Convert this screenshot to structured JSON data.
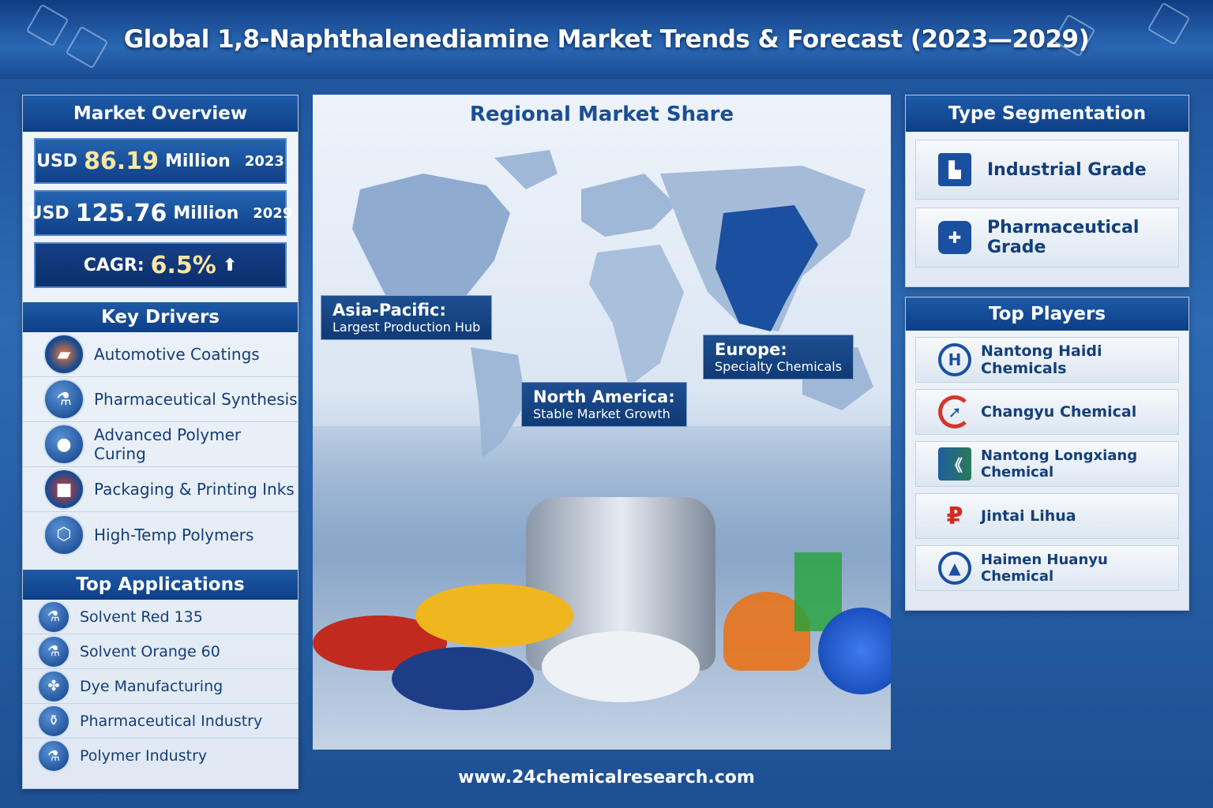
{
  "title": "Global 1,8-Naphthalenediamine Market Trends & Forecast (2023—2029)",
  "market_overview": {
    "title": "Market Overview",
    "stats": [
      {
        "prefix": "USD",
        "value": "86.19",
        "unit": "Million",
        "year": "2023"
      },
      {
        "prefix": "USD",
        "value": "125.76",
        "unit": "Million",
        "year": "2029"
      }
    ],
    "cagr_label": "CAGR:",
    "cagr_value": "6.5%",
    "cagr_arrow": "⬆"
  },
  "key_drivers": {
    "title": "Key Drivers",
    "items": [
      {
        "label": "Automotive Coatings",
        "icon": "paint-icon"
      },
      {
        "label": "Pharmaceutical Synthesis",
        "icon": "flask-icon"
      },
      {
        "label": "Advanced Polymer Curing",
        "icon": "pellets-icon"
      },
      {
        "label": "Packaging & Printing Inks",
        "icon": "box-icon"
      },
      {
        "label": "High-Temp Polymers",
        "icon": "polymer-icon"
      }
    ]
  },
  "top_applications": {
    "title": "Top Applications",
    "items": [
      {
        "label": "Solvent Red 135",
        "icon": "flask-icon"
      },
      {
        "label": "Solvent Orange 60",
        "icon": "flask-icon"
      },
      {
        "label": "Dye Manufacturing",
        "icon": "dye-icon"
      },
      {
        "label": "Pharmaceutical Industry",
        "icon": "bottle-icon"
      },
      {
        "label": "Polymer Industry",
        "icon": "flask-icon"
      }
    ]
  },
  "regional": {
    "title": "Regional Market Share",
    "labels": [
      {
        "region": "Asia-Pacific:",
        "note": "Largest Production Hub"
      },
      {
        "region": "Europe:",
        "note": "Specialty Chemicals"
      },
      {
        "region": "North America:",
        "note": "Stable Market Growth"
      }
    ]
  },
  "type_segmentation": {
    "title": "Type Segmentation",
    "items": [
      {
        "label": "Industrial Grade",
        "icon": "factory-icon"
      },
      {
        "label": "Pharmaceutical Grade",
        "icon": "medicine-bottle-icon"
      }
    ]
  },
  "top_players": {
    "title": "Top Players",
    "items": [
      {
        "label": "Nantong Haidi Chemicals",
        "color": "#1b4fa0"
      },
      {
        "label": "Changyu Chemical",
        "color": "#d8342a"
      },
      {
        "label": "Nantong Longxiang Chemical",
        "color": "#1f5e9e"
      },
      {
        "label": "Jintai Lihua",
        "color": "#d42a22"
      },
      {
        "label": "Haimen Huanyu Chemical",
        "color": "#1b4fa0"
      }
    ]
  },
  "footer": "www.24chemicalresearch.com",
  "colors": {
    "primary": "#0d3f87",
    "accent": "#fbe7a0",
    "panel": "#eef3fa"
  }
}
